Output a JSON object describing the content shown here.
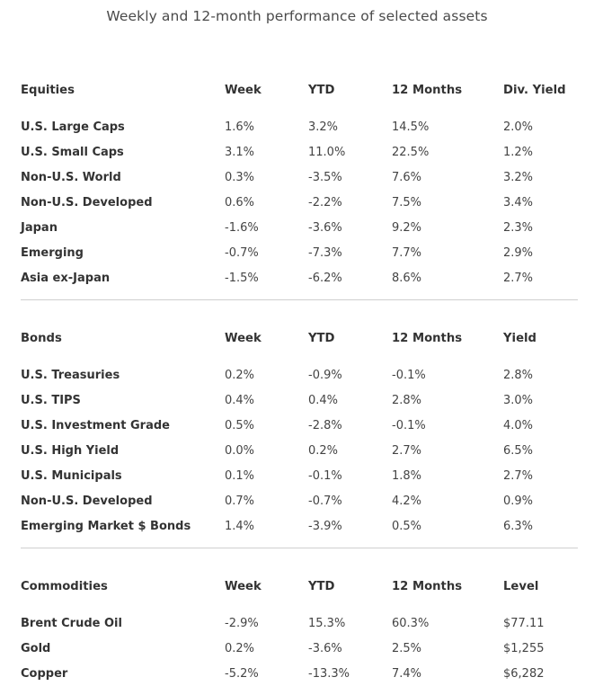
{
  "title": "Weekly and 12-month performance of selected assets",
  "equities": {
    "headers": [
      "Equities",
      "Week",
      "YTD",
      "12 Months",
      "Div. Yield"
    ],
    "rows": [
      [
        "U.S. Large Caps",
        "1.6%",
        "3.2%",
        "14.5%",
        "2.0%"
      ],
      [
        "U.S. Small Caps",
        "3.1%",
        "11.0%",
        "22.5%",
        "1.2%"
      ],
      [
        "Non-U.S. World",
        "0.3%",
        "-3.5%",
        "7.6%",
        "3.2%"
      ],
      [
        "Non-U.S. Developed",
        "0.6%",
        "-2.2%",
        "7.5%",
        "3.4%"
      ],
      [
        "Japan",
        "-1.6%",
        "-3.6%",
        "9.2%",
        "2.3%"
      ],
      [
        "Emerging",
        "-0.7%",
        "-7.3%",
        "7.7%",
        "2.9%"
      ],
      [
        "Asia ex-Japan",
        "-1.5%",
        "-6.2%",
        "8.6%",
        "2.7%"
      ]
    ]
  },
  "bonds": {
    "headers": [
      "Bonds",
      "Week",
      "YTD",
      "12 Months",
      "Yield"
    ],
    "rows": [
      [
        "U.S. Treasuries",
        "0.2%",
        "-0.9%",
        "-0.1%",
        "2.8%"
      ],
      [
        "U.S. TIPS",
        "0.4%",
        "0.4%",
        "2.8%",
        "3.0%"
      ],
      [
        "U.S. Investment Grade",
        "0.5%",
        "-2.8%",
        "-0.1%",
        "4.0%"
      ],
      [
        "U.S. High Yield",
        "0.0%",
        "0.2%",
        "2.7%",
        "6.5%"
      ],
      [
        "U.S. Municipals",
        "0.1%",
        "-0.1%",
        "1.8%",
        "2.7%"
      ],
      [
        "Non-U.S. Developed",
        "0.7%",
        "-0.7%",
        "4.2%",
        "0.9%"
      ],
      [
        "Emerging Market $ Bonds",
        "1.4%",
        "-3.9%",
        "0.5%",
        "6.3%"
      ]
    ]
  },
  "commodities": {
    "headers": [
      "Commodities",
      "Week",
      "YTD",
      "12 Months",
      "Level"
    ],
    "rows": [
      [
        "Brent Crude Oil",
        "-2.9%",
        "15.3%",
        "60.3%",
        "$77.11"
      ],
      [
        "Gold",
        "0.2%",
        "-3.6%",
        "2.5%",
        "$1,255"
      ],
      [
        "Copper",
        "-5.2%",
        "-13.3%",
        "7.4%",
        "$6,282"
      ]
    ]
  }
}
